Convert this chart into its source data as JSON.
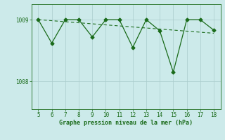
{
  "x": [
    5,
    6,
    7,
    8,
    9,
    10,
    11,
    12,
    13,
    14,
    15,
    16,
    17,
    18
  ],
  "y": [
    1009.0,
    1008.62,
    1009.0,
    1009.0,
    1008.72,
    1009.0,
    1009.0,
    1008.55,
    1009.0,
    1008.82,
    1008.15,
    1009.0,
    1009.0,
    1008.83
  ],
  "trend_x": [
    5,
    18
  ],
  "trend_y": [
    1009.0,
    1008.78
  ],
  "line_color": "#1a6b1a",
  "bg_color": "#cceaea",
  "grid_color": "#aacccc",
  "text_color": "#1a6b1a",
  "xlabel": "Graphe pression niveau de la mer (hPa)",
  "ytick_labels": [
    "1008",
    "1009"
  ],
  "ytick_values": [
    1008.0,
    1009.0
  ],
  "ylim": [
    1007.55,
    1009.25
  ],
  "xlim": [
    4.5,
    18.5
  ],
  "xticks": [
    5,
    6,
    7,
    8,
    9,
    10,
    11,
    12,
    13,
    14,
    15,
    16,
    17,
    18
  ]
}
